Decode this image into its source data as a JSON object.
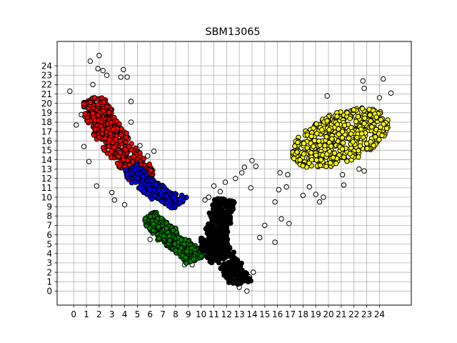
{
  "chart_data": {
    "type": "scatter",
    "title": "SBM13065",
    "xlabel": "",
    "ylabel": "",
    "xlim": [
      -1.3,
      26.5
    ],
    "ylim": [
      -1.5,
      26.6
    ],
    "xticks": [
      0,
      1,
      2,
      3,
      4,
      5,
      6,
      7,
      8,
      9,
      10,
      11,
      12,
      13,
      14,
      15,
      16,
      17,
      18,
      19,
      20,
      21,
      22,
      23,
      24
    ],
    "yticks": [
      0,
      1,
      2,
      3,
      4,
      5,
      6,
      7,
      8,
      9,
      10,
      11,
      12,
      13,
      14,
      15,
      16,
      17,
      18,
      19,
      20,
      21,
      22,
      23,
      24
    ],
    "grid": true,
    "marker": "circle",
    "edgecolor": "#000000",
    "clusters": [
      {
        "color": "#ffffff",
        "regions": [
          {
            "x": [
              -0.2,
              16.0
            ],
            "y": [
              0.0,
              24.6
            ],
            "role": "outliers",
            "points": [
              [
                -0.3,
                21.3
              ],
              [
                0.2,
                17.7
              ],
              [
                0.6,
                18.8
              ],
              [
                0.8,
                15.4
              ],
              [
                1.0,
                19.6
              ],
              [
                1.2,
                13.8
              ],
              [
                1.3,
                24.5
              ],
              [
                1.5,
                22.0
              ],
              [
                1.9,
                23.7
              ],
              [
                2.0,
                25.1
              ],
              [
                1.8,
                11.2
              ],
              [
                2.3,
                23.5
              ],
              [
                2.6,
                23.0
              ],
              [
                3.0,
                10.5
              ],
              [
                3.2,
                9.7
              ],
              [
                3.7,
                22.8
              ],
              [
                3.9,
                23.6
              ],
              [
                4.2,
                22.8
              ],
              [
                4.5,
                20.2
              ],
              [
                4.5,
                18.0
              ],
              [
                4.0,
                9.2
              ],
              [
                5.2,
                15.5
              ],
              [
                5.8,
                14.4
              ],
              [
                6.0,
                5.5
              ],
              [
                6.3,
                14.9
              ],
              [
                8.7,
                2.8
              ],
              [
                9.3,
                2.8
              ],
              [
                10.3,
                9.7
              ],
              [
                10.6,
                10.0
              ],
              [
                11.0,
                11.2
              ],
              [
                11.5,
                10.6
              ],
              [
                11.9,
                11.6
              ],
              [
                12.2,
                1.4
              ],
              [
                12.7,
                12.0
              ],
              [
                13.0,
                0.4
              ],
              [
                13.2,
                12.6
              ],
              [
                13.4,
                13.2
              ],
              [
                13.6,
                0.0
              ],
              [
                13.8,
                1.5
              ],
              [
                13.9,
                11.0
              ],
              [
                14.0,
                13.9
              ],
              [
                14.1,
                2.0
              ],
              [
                14.3,
                13.3
              ],
              [
                14.6,
                5.7
              ],
              [
                15.0,
                7.0
              ],
              [
                15.8,
                5.2
              ],
              [
                15.8,
                9.5
              ],
              [
                16.1,
                10.8
              ],
              [
                16.2,
                12.6
              ],
              [
                16.3,
                7.7
              ],
              [
                16.7,
                11.1
              ],
              [
                16.9,
                7.2
              ],
              [
                16.8,
                12.4
              ],
              [
                17.2,
                14.3
              ],
              [
                18.0,
                10.2
              ],
              [
                18.5,
                11.1
              ],
              [
                19.0,
                10.3
              ],
              [
                19.3,
                9.5
              ],
              [
                19.6,
                10.0
              ],
              [
                19.9,
                20.8
              ],
              [
                21.2,
                11.3
              ],
              [
                22.4,
                13.0
              ],
              [
                22.8,
                12.8
              ],
              [
                22.7,
                22.4
              ],
              [
                22.8,
                21.6
              ],
              [
                24.0,
                20.6
              ],
              [
                24.3,
                22.6
              ],
              [
                24.5,
                17.0
              ],
              [
                24.9,
                21.1
              ],
              [
                21.1,
                12.4
              ]
            ]
          }
        ]
      },
      {
        "color": "#ff0000",
        "regions": [
          {
            "x": [
              0.8,
              6.2
            ],
            "y": [
              11.4,
              22.0
            ],
            "shape": "band",
            "path": [
              [
                1.2,
                20.5
              ],
              [
                2.5,
                17.5
              ],
              [
                3.7,
                15.0
              ],
              [
                4.8,
                13.3
              ],
              [
                5.4,
                12.0
              ]
            ],
            "width": 2.2,
            "n": 430
          }
        ]
      },
      {
        "color": "#0000ff",
        "regions": [
          {
            "x": [
              4.1,
              9.0
            ],
            "y": [
              8.4,
              14.0
            ],
            "shape": "band",
            "path": [
              [
                4.4,
                13.2
              ],
              [
                5.3,
                11.8
              ],
              [
                6.4,
                10.7
              ],
              [
                7.5,
                10.0
              ],
              [
                8.4,
                9.3
              ]
            ],
            "width": 1.5,
            "n": 260
          }
        ]
      },
      {
        "color": "#008000",
        "regions": [
          {
            "x": [
              5.6,
              10.3
            ],
            "y": [
              2.6,
              9.3
            ],
            "shape": "band",
            "path": [
              [
                5.8,
                8.0
              ],
              [
                6.6,
                7.0
              ],
              [
                7.4,
                6.0
              ],
              [
                8.2,
                5.0
              ],
              [
                9.0,
                4.2
              ],
              [
                9.6,
                3.3
              ]
            ],
            "width": 1.6,
            "n": 360
          }
        ]
      },
      {
        "color": "#000000",
        "regions": [
          {
            "x": [
              9.9,
              14.1
            ],
            "y": [
              0.3,
              10.7
            ],
            "shape": "band",
            "path": [
              [
                11.9,
                9.8
              ],
              [
                11.4,
                7.5
              ],
              [
                11.2,
                5.5
              ],
              [
                11.8,
                3.5
              ],
              [
                12.8,
                1.8
              ],
              [
                13.2,
                0.8
              ]
            ],
            "width": 1.7,
            "n": 420
          },
          {
            "x": [
              10.0,
              11.6
            ],
            "y": [
              2.5,
              6.0
            ],
            "shape": "band",
            "path": [
              [
                10.1,
                5.8
              ],
              [
                10.7,
                4.5
              ],
              [
                11.3,
                3.2
              ]
            ],
            "width": 1.2,
            "n": 90
          }
        ]
      },
      {
        "color": "#ffff00",
        "regions": [
          {
            "x": [
              17.2,
              24.9
            ],
            "y": [
              11.0,
              21.1
            ],
            "shape": "ellipse",
            "center": [
              20.9,
              16.3
            ],
            "angle": 35,
            "rx": 4.3,
            "ry": 2.5,
            "n": 470
          }
        ]
      }
    ]
  }
}
